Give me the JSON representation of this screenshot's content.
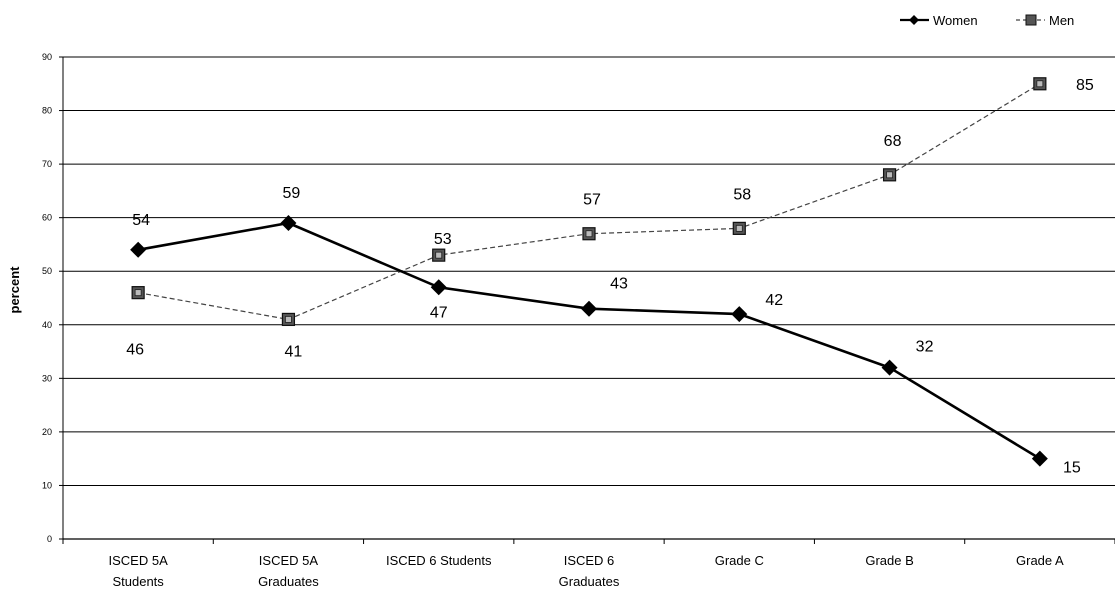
{
  "chart_data": {
    "type": "line",
    "ylabel": "percent",
    "ylim": [
      0,
      90
    ],
    "yticks": [
      0,
      10,
      20,
      30,
      40,
      50,
      60,
      70,
      80,
      90
    ],
    "grid": true,
    "legend_position": "top-right",
    "categories": [
      [
        "ISCED 5A",
        "Students"
      ],
      [
        "ISCED 5A",
        "Graduates"
      ],
      [
        "ISCED 6  Students"
      ],
      [
        "ISCED 6",
        "Graduates"
      ],
      [
        "Grade C"
      ],
      [
        "Grade B"
      ],
      [
        "Grade A"
      ]
    ],
    "series": [
      {
        "name": "Women",
        "marker": "diamond",
        "line": "solid",
        "color": "#000000",
        "values": [
          54,
          59,
          47,
          43,
          42,
          32,
          15
        ]
      },
      {
        "name": "Men",
        "marker": "square",
        "line": "dashed",
        "color": "#333333",
        "values": [
          46,
          41,
          53,
          57,
          58,
          68,
          85
        ]
      }
    ]
  }
}
